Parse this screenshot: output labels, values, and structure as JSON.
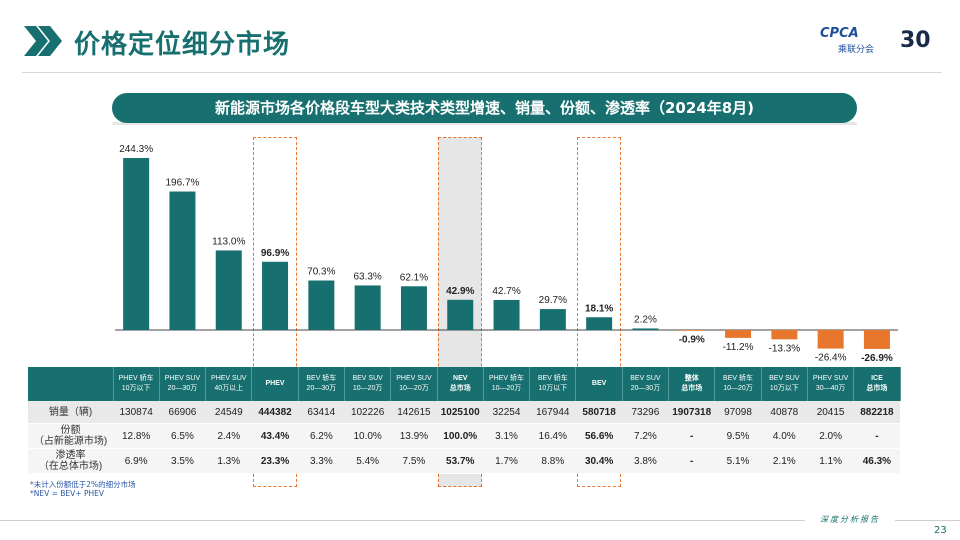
{
  "page": {
    "title": "价格定位细分市场",
    "banner": "新能源市场各价格段车型大类技术类型增速、销量、份额、渗透率（2024年8月)",
    "page_number": "23",
    "bottom_tag": "深度分析报告",
    "footnote1": "*未计入份额低于2%的细分市场",
    "footnote2": "*NEV = BEV+ PHEV"
  },
  "logo": {
    "brand": "CPCA",
    "sub": "乘联分会",
    "anniv": "30"
  },
  "colors": {
    "teal": "#17706f",
    "orange": "#e8772e",
    "highlight_gray": "#dcdcdc"
  },
  "chart_data": {
    "type": "bar",
    "title": "新能源市场各价格段车型大类技术类型增速、销量、份额、渗透率（2024年8月)",
    "categories": [
      "PHEV 轿车\n10万以下",
      "PHEV SUV\n20—30万",
      "PHEV SUV\n40万以上",
      "PHEV",
      "BEV 轿车\n20—30万",
      "BEV SUV\n10—20万",
      "PHEV SUV\n10—20万",
      "NEV\n总市场",
      "PHEV 轿车\n10—20万",
      "BEV 轿车\n10万以下",
      "BEV",
      "BEV SUV\n20—30万",
      "整体\n总市场",
      "BEV 轿车\n10—20万",
      "BEV SUV\n10万以下",
      "PHEV SUV\n30—40万",
      "ICE\n总市场"
    ],
    "series": [
      {
        "values": [
          244.3,
          196.7,
          113.0,
          96.9,
          70.3,
          63.3,
          62.1,
          42.9,
          42.7,
          29.7,
          18.1,
          2.2,
          -0.9,
          -11.2,
          -13.3,
          -26.4,
          -26.9
        ]
      }
    ],
    "data_labels": [
      "244.3%",
      "196.7%",
      "113.0%",
      "96.9%",
      "70.3%",
      "63.3%",
      "62.1%",
      "42.9%",
      "42.7%",
      "29.7%",
      "18.1%",
      "2.2%",
      "-0.9%",
      "-11.2%",
      "-13.3%",
      "-26.4%",
      "-26.9%"
    ],
    "bold_labels": [
      3,
      7,
      10,
      12,
      16
    ],
    "highlighted_columns": [
      3,
      7,
      10
    ],
    "xlabel": "",
    "ylabel": "",
    "ylim": [
      -30,
      250
    ],
    "grid": false,
    "legend": "none"
  },
  "table": {
    "columns": [
      "PHEV 轿车\n10万以下",
      "PHEV SUV\n20—30万",
      "PHEV SUV\n40万以上",
      "PHEV",
      "BEV 轿车\n20—30万",
      "BEV SUV\n10—20万",
      "PHEV SUV\n10—20万",
      "NEV\n总市场",
      "PHEV 轿车\n10—20万",
      "BEV 轿车\n10万以下",
      "BEV",
      "BEV SUV\n20—30万",
      "整体\n总市场",
      "BEV 轿车\n10—20万",
      "BEV SUV\n10万以下",
      "PHEV SUV\n30—40万",
      "ICE\n总市场"
    ],
    "bold_columns": [
      3,
      7,
      10,
      12,
      16
    ],
    "rows": [
      {
        "label": "销量（辆)",
        "values": [
          "130874",
          "66906",
          "24549",
          "444382",
          "63414",
          "102226",
          "142615",
          "1025100",
          "32254",
          "167944",
          "580718",
          "73296",
          "1907318",
          "97098",
          "40878",
          "20415",
          "882218"
        ]
      },
      {
        "label": "份额\n（占新能源市场)",
        "values": [
          "12.8%",
          "6.5%",
          "2.4%",
          "43.4%",
          "6.2%",
          "10.0%",
          "13.9%",
          "100.0%",
          "3.1%",
          "16.4%",
          "56.6%",
          "7.2%",
          "-",
          "9.5%",
          "4.0%",
          "2.0%",
          "-"
        ]
      },
      {
        "label": "渗透率\n（在总体市场)",
        "values": [
          "6.9%",
          "3.5%",
          "1.3%",
          "23.3%",
          "3.3%",
          "5.4%",
          "7.5%",
          "53.7%",
          "1.7%",
          "8.8%",
          "30.4%",
          "3.8%",
          "-",
          "5.1%",
          "2.1%",
          "1.1%",
          "46.3%"
        ]
      }
    ]
  }
}
